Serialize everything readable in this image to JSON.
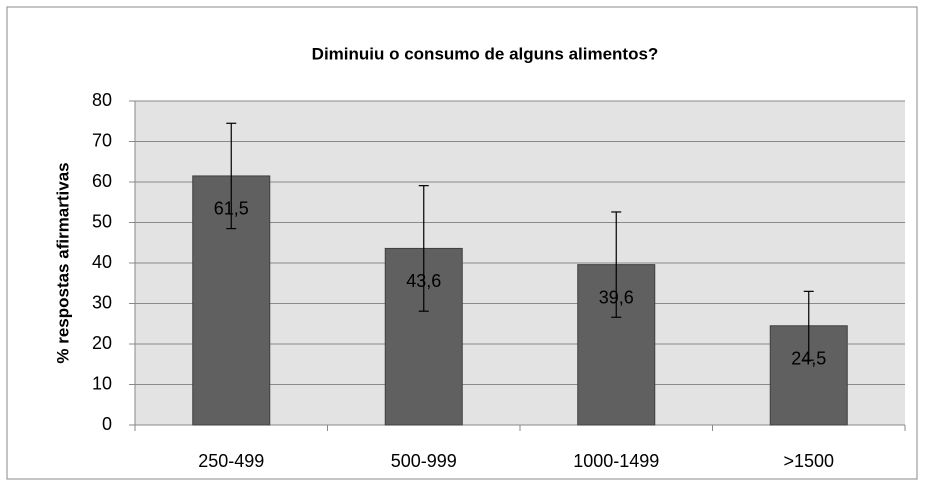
{
  "chart_data": {
    "type": "bar",
    "title": "Diminuiu  o consumo de alguns  alimentos?",
    "y_label": "% respostas afirmartivas",
    "categories": [
      "250-499",
      "500-999",
      "1000-1499",
      ">1500"
    ],
    "values": [
      61.5,
      43.6,
      39.6,
      24.5
    ],
    "value_labels": [
      "61,5",
      "43,6",
      "39,6",
      "24,5"
    ],
    "errors": [
      13,
      15.5,
      13,
      8.5
    ],
    "color": "#606060",
    "ylim": [
      0,
      80
    ],
    "yticks": [
      0,
      10,
      20,
      30,
      40,
      50,
      60,
      70,
      80
    ],
    "grid": true
  }
}
